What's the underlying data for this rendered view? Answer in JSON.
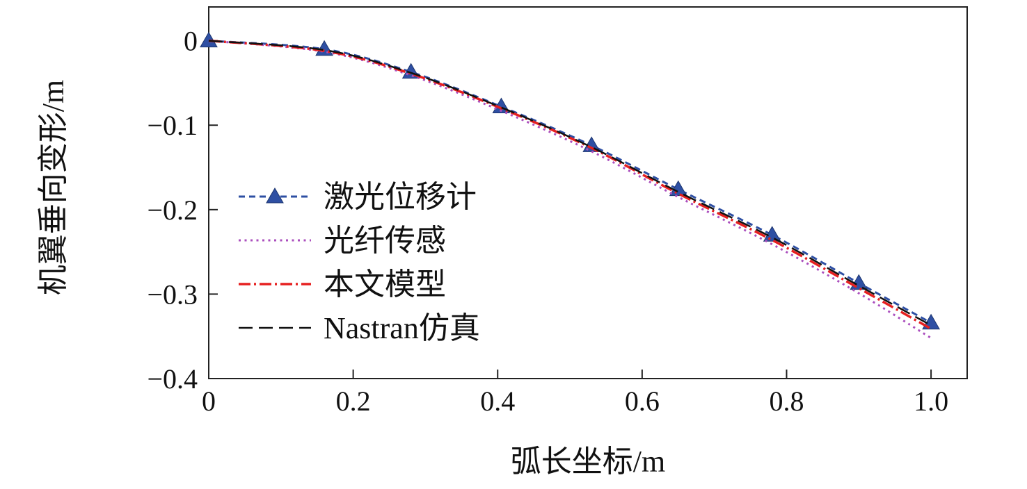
{
  "chart_data": {
    "type": "line",
    "title": "",
    "xlabel": "弧长坐标/m",
    "ylabel": "机翼垂向变形/m",
    "xlim": [
      0,
      1.05
    ],
    "ylim": [
      -0.4,
      0.04
    ],
    "xticks": [
      0,
      0.2,
      0.4,
      0.6,
      0.8,
      1.0
    ],
    "xtick_labels": [
      "0",
      "0.2",
      "0.4",
      "0.6",
      "0.8",
      "1.0"
    ],
    "yticks": [
      0,
      -0.1,
      -0.2,
      -0.3,
      -0.4
    ],
    "ytick_labels": [
      "0",
      "−0.1",
      "−0.2",
      "−0.3",
      "−0.4"
    ],
    "grid": false,
    "legend_position": "inside center-left",
    "x": [
      0,
      0.16,
      0.28,
      0.405,
      0.53,
      0.65,
      0.78,
      0.9,
      1.0
    ],
    "series": [
      {
        "id": "laser",
        "name": "激光位移计",
        "color": "#2e4fa3",
        "dash": "9 6",
        "width": 3,
        "marker": "triangle",
        "values": [
          0,
          -0.01,
          -0.037,
          -0.078,
          -0.124,
          -0.176,
          -0.23,
          -0.287,
          -0.334
        ]
      },
      {
        "id": "fiber",
        "name": "光纤传感",
        "color": "#ab4fbe",
        "dash": "3 5.5",
        "width": 3,
        "marker": "none",
        "values": [
          0,
          -0.013,
          -0.041,
          -0.083,
          -0.131,
          -0.185,
          -0.241,
          -0.299,
          -0.352
        ]
      },
      {
        "id": "model",
        "name": "本文模型",
        "color": "#e62020",
        "dash": "17 5 3 5",
        "width": 3.5,
        "marker": "none",
        "values": [
          0,
          -0.012,
          -0.039,
          -0.08,
          -0.127,
          -0.181,
          -0.236,
          -0.293,
          -0.341
        ]
      },
      {
        "id": "nastran",
        "name": "Nastran仿真",
        "color": "#111111",
        "dash": "20 9",
        "width": 2.5,
        "marker": "none",
        "values": [
          0,
          -0.011,
          -0.038,
          -0.079,
          -0.126,
          -0.179,
          -0.233,
          -0.29,
          -0.337
        ]
      }
    ]
  }
}
